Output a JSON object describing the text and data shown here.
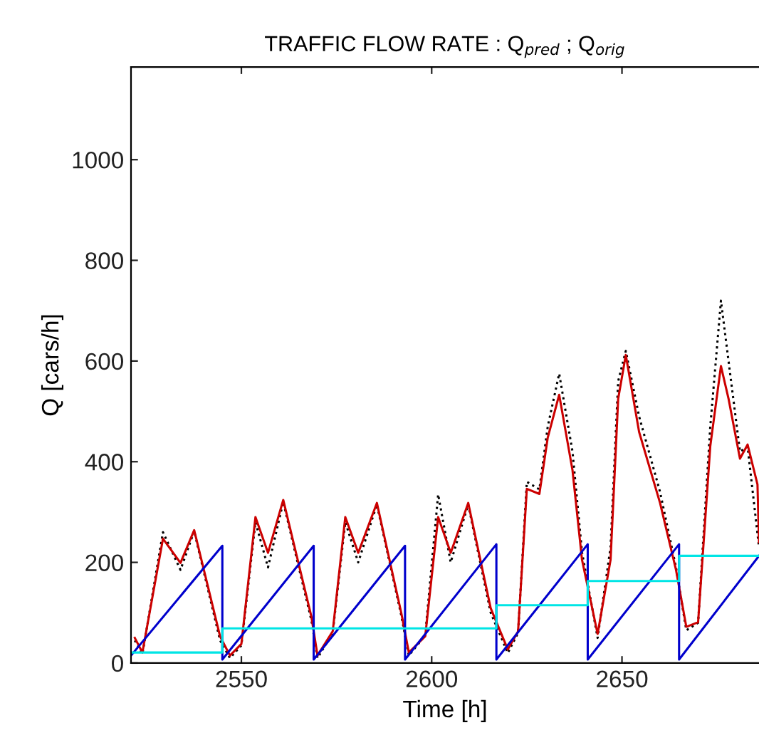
{
  "chart_data": {
    "type": "line",
    "title": "TRAFFIC FLOW RATE : Q$_{pred}$ ; Q$_{orig}$",
    "xlabel": "Time [h]",
    "ylabel": "Q [cars/h]",
    "xlim": [
      2521,
      2686
    ],
    "ylim": [
      0,
      1184
    ],
    "xticks": [
      2550,
      2600,
      2650
    ],
    "yticks": [
      0,
      200,
      400,
      600,
      800,
      1000
    ],
    "grid": false,
    "legend": false,
    "series": [
      {
        "color": "#000000",
        "line_style": "dotted",
        "x": [
          2522,
          2524,
          2529.4,
          2534,
          2537.6,
          2544.4,
          2547,
          2550,
          2553.7,
          2557,
          2561,
          2568.4,
          2570,
          2574,
          2577.3,
          2580.7,
          2585.6,
          2592,
          2594,
          2598.3,
          2601.7,
          2605,
          2609.6,
          2615.5,
          2620,
          2622.7,
          2625,
          2628.3,
          2630.5,
          2633.5,
          2637,
          2639.5,
          2643.6,
          2647,
          2649,
          2651,
          2654.5,
          2660,
          2664.2,
          2666.9,
          2670,
          2673.2,
          2676,
          2678,
          2681,
          2683,
          2686
        ],
        "values": [
          45,
          18,
          260,
          185,
          262,
          45,
          10,
          35,
          280,
          190,
          320,
          85,
          10,
          60,
          280,
          200,
          315,
          95,
          15,
          55,
          335,
          200,
          315,
          100,
          20,
          60,
          360,
          345,
          470,
          575,
          420,
          220,
          50,
          230,
          560,
          620,
          490,
          340,
          190,
          65,
          80,
          470,
          720,
          600,
          420,
          430,
          230
        ]
      },
      {
        "color": "#cc0000",
        "x": [
          2522,
          2524,
          2529.4,
          2534,
          2537.6,
          2544.4,
          2547,
          2550,
          2553.7,
          2557,
          2561,
          2568.4,
          2570,
          2574,
          2577.3,
          2580.7,
          2585.6,
          2592,
          2594,
          2598.3,
          2601.7,
          2605,
          2609.6,
          2615.5,
          2620,
          2622.7,
          2625,
          2628.3,
          2630.5,
          2633.5,
          2637,
          2639.5,
          2643.6,
          2647,
          2649,
          2651,
          2654.5,
          2660,
          2664.2,
          2666.9,
          2670,
          2673.2,
          2676,
          2678,
          2681,
          2683,
          2685.6,
          2686
        ],
        "values": [
          50,
          21,
          247,
          199,
          264,
          53,
          15,
          38,
          290,
          219,
          324,
          92,
          15,
          63,
          290,
          219,
          318,
          100,
          21,
          53,
          290,
          219,
          318,
          109,
          27,
          63,
          346,
          336,
          448,
          533,
          383,
          205,
          58,
          205,
          525,
          612,
          459,
          318,
          185,
          72,
          81,
          431,
          590,
          525,
          406,
          434,
          355,
          240
        ]
      },
      {
        "color": "#0000cc",
        "x": [
          2521,
          2545,
          2545,
          2569,
          2569,
          2593,
          2593,
          2617,
          2617,
          2641,
          2641,
          2665,
          2665,
          2686
        ],
        "values": [
          15,
          233,
          7,
          233,
          7,
          233,
          7,
          236,
          7,
          236,
          7,
          236,
          7,
          213
        ]
      },
      {
        "type": "step",
        "color": "#00e5e5",
        "x": [
          2521,
          2545,
          2617,
          2641,
          2665,
          2686
        ],
        "values": [
          21,
          69,
          115,
          163,
          213,
          213
        ]
      }
    ]
  }
}
